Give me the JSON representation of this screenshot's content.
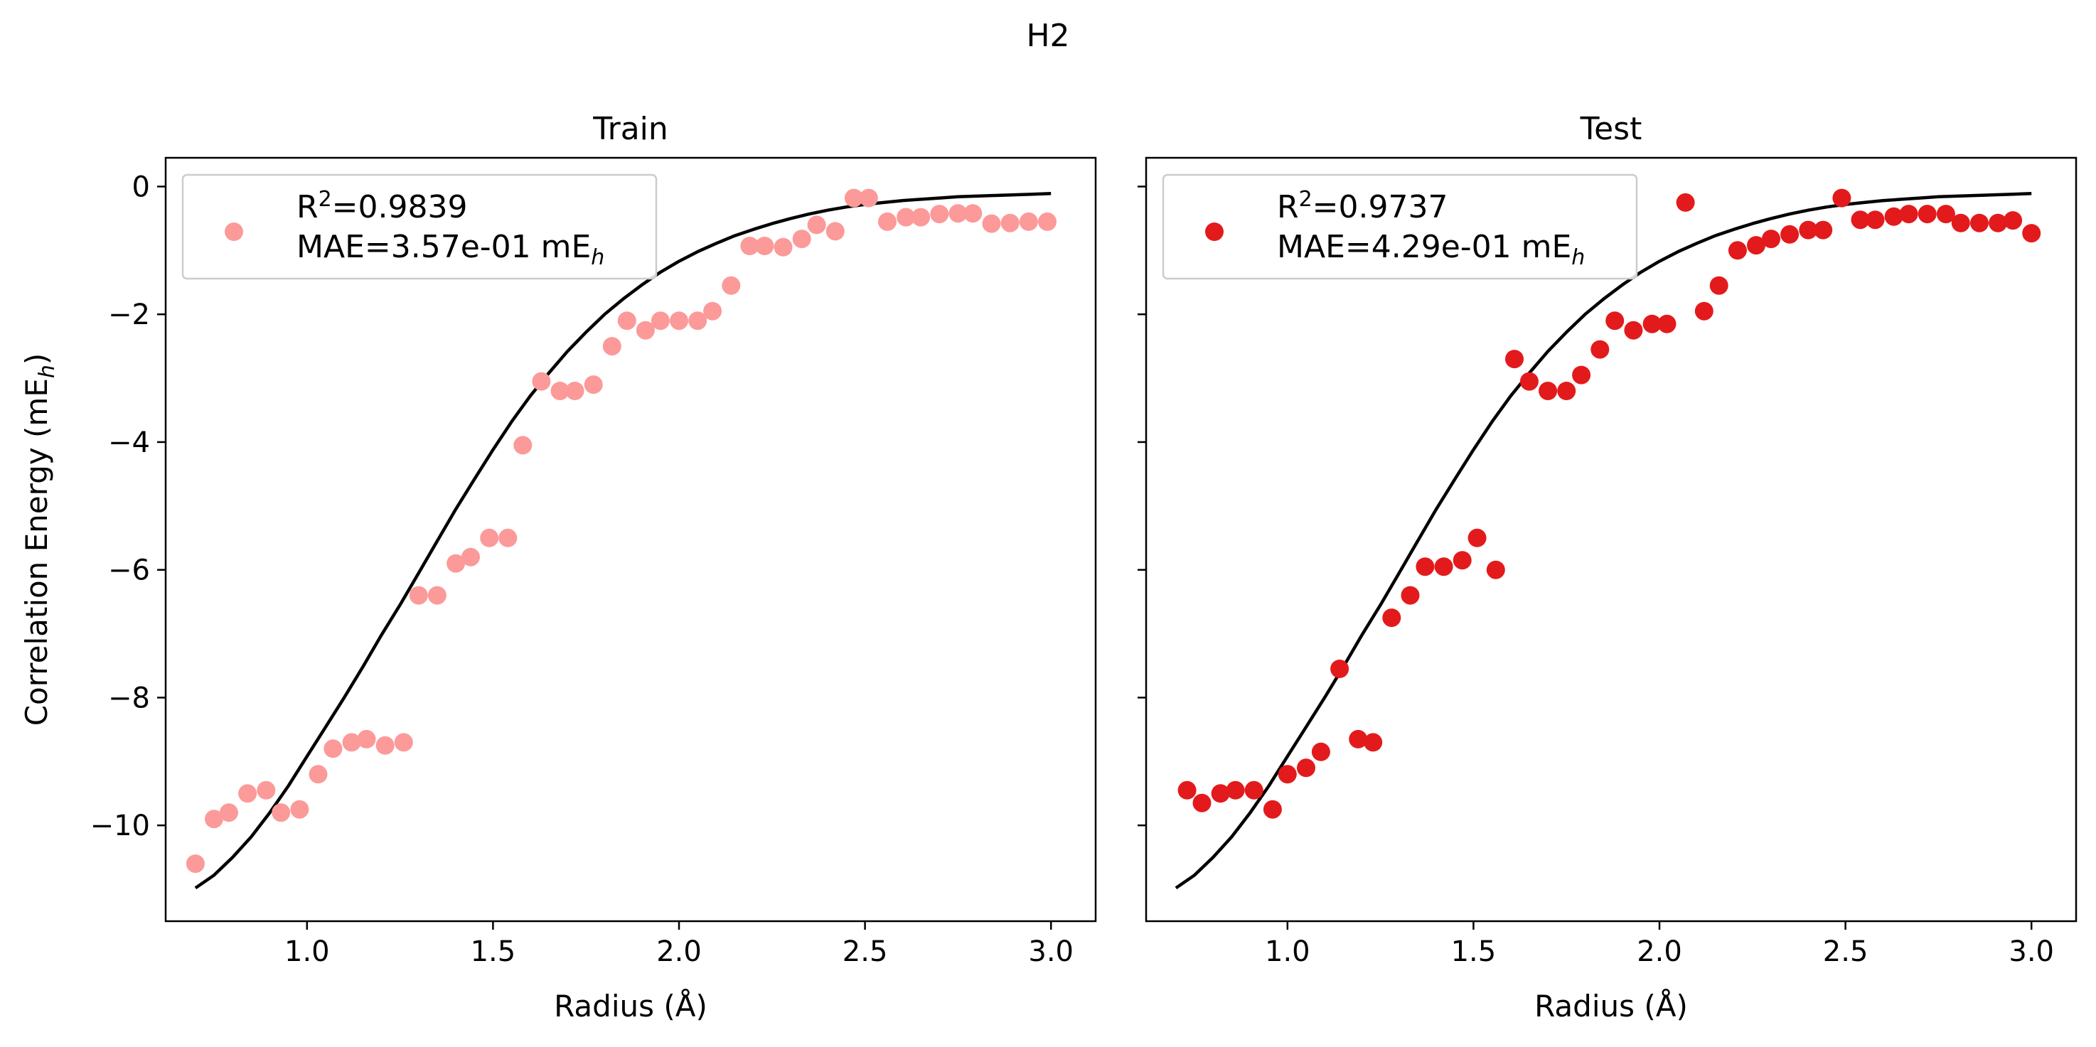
{
  "figure": {
    "suptitle": "H2"
  },
  "colors": {
    "train": "#fb9a99",
    "test": "#e31a1c",
    "fit_line": "#000000",
    "axes": "#000000",
    "legend_border": "#cccccc"
  },
  "chart_data": [
    {
      "type": "scatter",
      "title": "Train",
      "xlabel": "Radius (Å)",
      "ylabel": "Correlation Energy (mE_h)",
      "xlim": [
        0.62,
        3.12
      ],
      "ylim": [
        -11.5,
        0.45
      ],
      "xticks": [
        1.0,
        1.5,
        2.0,
        2.5,
        3.0
      ],
      "xtick_labels": [
        "1.0",
        "1.5",
        "2.0",
        "2.5",
        "3.0"
      ],
      "yticks": [
        0,
        -2,
        -4,
        -6,
        -8,
        -10
      ],
      "ytick_labels": [
        "0",
        "−2",
        "−4",
        "−6",
        "−8",
        "−10"
      ],
      "grid": false,
      "legend": {
        "placement": "upper left",
        "r2_label": "R",
        "r2_value": "=0.9839",
        "mae_label": "MAE=3.57e-01 mE"
      },
      "series": [
        {
          "kind": "scatter",
          "color": "#fb9a99",
          "x": [
            0.7,
            0.75,
            0.79,
            0.84,
            0.89,
            0.93,
            0.98,
            1.03,
            1.07,
            1.12,
            1.16,
            1.21,
            1.26,
            1.3,
            1.35,
            1.4,
            1.44,
            1.49,
            1.54,
            1.58,
            1.63,
            1.68,
            1.72,
            1.77,
            1.82,
            1.86,
            1.91,
            1.95,
            2.0,
            2.05,
            2.09,
            2.14,
            2.19,
            2.23,
            2.28,
            2.33,
            2.37,
            2.42,
            2.47,
            2.51,
            2.56,
            2.61,
            2.65,
            2.7,
            2.75,
            2.79,
            2.84,
            2.89,
            2.94,
            2.99
          ],
          "y": [
            -10.6,
            -9.9,
            -9.8,
            -9.5,
            -9.45,
            -9.8,
            -9.75,
            -9.2,
            -8.8,
            -8.7,
            -8.65,
            -8.75,
            -8.7,
            -6.4,
            -6.4,
            -5.9,
            -5.8,
            -5.5,
            -5.5,
            -4.05,
            -3.05,
            -3.2,
            -3.2,
            -3.1,
            -2.5,
            -2.1,
            -2.25,
            -2.1,
            -2.1,
            -2.1,
            -1.95,
            -1.55,
            -0.93,
            -0.93,
            -0.95,
            -0.82,
            -0.6,
            -0.7,
            -0.18,
            -0.18,
            -0.55,
            -0.48,
            -0.48,
            -0.43,
            -0.42,
            -0.42,
            -0.58,
            -0.57,
            -0.55,
            -0.55
          ]
        },
        {
          "kind": "line",
          "color": "#000000",
          "x": [
            0.7,
            0.75,
            0.8,
            0.85,
            0.9,
            0.95,
            1.0,
            1.05,
            1.1,
            1.15,
            1.2,
            1.25,
            1.3,
            1.35,
            1.4,
            1.45,
            1.5,
            1.55,
            1.6,
            1.65,
            1.7,
            1.75,
            1.8,
            1.85,
            1.9,
            1.95,
            2.0,
            2.05,
            2.1,
            2.15,
            2.2,
            2.25,
            2.3,
            2.35,
            2.4,
            2.45,
            2.5,
            2.55,
            2.6,
            2.65,
            2.7,
            2.75,
            2.8,
            2.85,
            2.9,
            2.95,
            3.0
          ],
          "y": [
            -10.98,
            -10.78,
            -10.5,
            -10.18,
            -9.8,
            -9.38,
            -8.92,
            -8.46,
            -8.0,
            -7.52,
            -7.02,
            -6.55,
            -6.05,
            -5.55,
            -5.05,
            -4.58,
            -4.12,
            -3.68,
            -3.28,
            -2.92,
            -2.58,
            -2.28,
            -2.0,
            -1.76,
            -1.54,
            -1.34,
            -1.17,
            -1.02,
            -0.89,
            -0.77,
            -0.67,
            -0.58,
            -0.5,
            -0.43,
            -0.37,
            -0.32,
            -0.28,
            -0.25,
            -0.22,
            -0.2,
            -0.18,
            -0.16,
            -0.15,
            -0.14,
            -0.13,
            -0.12,
            -0.11
          ]
        }
      ]
    },
    {
      "type": "scatter",
      "title": "Test",
      "xlabel": "Radius (Å)",
      "ylabel": "",
      "xlim": [
        0.62,
        3.12
      ],
      "ylim": [
        -11.5,
        0.45
      ],
      "xticks": [
        1.0,
        1.5,
        2.0,
        2.5,
        3.0
      ],
      "xtick_labels": [
        "1.0",
        "1.5",
        "2.0",
        "2.5",
        "3.0"
      ],
      "yticks": [
        0,
        -2,
        -4,
        -6,
        -8,
        -10
      ],
      "ytick_labels": [],
      "grid": false,
      "legend": {
        "placement": "upper left",
        "r2_label": "R",
        "r2_value": "=0.9737",
        "mae_label": "MAE=4.29e-01 mE"
      },
      "series": [
        {
          "kind": "scatter",
          "color": "#e31a1c",
          "x": [
            0.73,
            0.77,
            0.82,
            0.86,
            0.91,
            0.96,
            1.0,
            1.05,
            1.09,
            1.14,
            1.19,
            1.23,
            1.28,
            1.33,
            1.37,
            1.42,
            1.47,
            1.51,
            1.56,
            1.61,
            1.65,
            1.7,
            1.75,
            1.79,
            1.84,
            1.88,
            1.93,
            1.98,
            2.02,
            2.07,
            2.12,
            2.16,
            2.21,
            2.26,
            2.3,
            2.35,
            2.4,
            2.44,
            2.49,
            2.54,
            2.58,
            2.63,
            2.67,
            2.72,
            2.77,
            2.81,
            2.86,
            2.91,
            2.95,
            3.0
          ],
          "y": [
            -9.45,
            -9.65,
            -9.5,
            -9.45,
            -9.45,
            -9.75,
            -9.2,
            -9.1,
            -8.85,
            -7.55,
            -8.65,
            -8.7,
            -6.75,
            -6.4,
            -5.95,
            -5.95,
            -5.85,
            -5.5,
            -6.0,
            -2.7,
            -3.05,
            -3.2,
            -3.2,
            -2.95,
            -2.55,
            -2.1,
            -2.25,
            -2.15,
            -2.15,
            -0.25,
            -1.95,
            -1.55,
            -1.0,
            -0.92,
            -0.82,
            -0.75,
            -0.68,
            -0.68,
            -0.18,
            -0.52,
            -0.52,
            -0.47,
            -0.43,
            -0.43,
            -0.43,
            -0.57,
            -0.57,
            -0.57,
            -0.53,
            -0.73
          ]
        },
        {
          "kind": "line",
          "color": "#000000",
          "x": [
            0.7,
            0.75,
            0.8,
            0.85,
            0.9,
            0.95,
            1.0,
            1.05,
            1.1,
            1.15,
            1.2,
            1.25,
            1.3,
            1.35,
            1.4,
            1.45,
            1.5,
            1.55,
            1.6,
            1.65,
            1.7,
            1.75,
            1.8,
            1.85,
            1.9,
            1.95,
            2.0,
            2.05,
            2.1,
            2.15,
            2.2,
            2.25,
            2.3,
            2.35,
            2.4,
            2.45,
            2.5,
            2.55,
            2.6,
            2.65,
            2.7,
            2.75,
            2.8,
            2.85,
            2.9,
            2.95,
            3.0
          ],
          "y": [
            -10.98,
            -10.78,
            -10.5,
            -10.18,
            -9.8,
            -9.38,
            -8.92,
            -8.46,
            -8.0,
            -7.52,
            -7.02,
            -6.55,
            -6.05,
            -5.55,
            -5.05,
            -4.58,
            -4.12,
            -3.68,
            -3.28,
            -2.92,
            -2.58,
            -2.28,
            -2.0,
            -1.76,
            -1.54,
            -1.34,
            -1.17,
            -1.02,
            -0.89,
            -0.77,
            -0.67,
            -0.58,
            -0.5,
            -0.43,
            -0.37,
            -0.32,
            -0.28,
            -0.25,
            -0.22,
            -0.2,
            -0.18,
            -0.16,
            -0.15,
            -0.14,
            -0.13,
            -0.12,
            -0.11
          ]
        }
      ]
    }
  ]
}
